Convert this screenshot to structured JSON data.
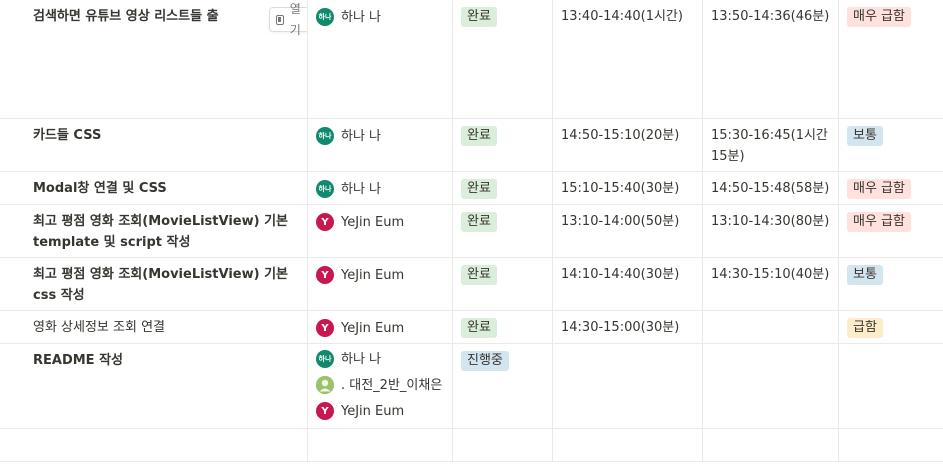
{
  "status_colors": {
    "done_bg": "#dbeddb",
    "progress_bg": "#d3e5ef"
  },
  "priority_colors": {
    "very_urgent_bg": "#ffe2dd",
    "normal_bg": "#d3e5ef",
    "urgent_bg": "#fdecc8"
  },
  "open_button": {
    "label": "열기"
  },
  "rows": [
    {
      "title": "검색하면 유튜브 영상 리스트들 출",
      "people": [
        {
          "initials": "하나",
          "name": "하나 나",
          "avatar": "hana"
        }
      ],
      "status": "완료",
      "plan": "13:40-14:40(1시간)",
      "actual": "13:50-14:36(46분)",
      "priority": "매우 급함"
    },
    {
      "title": "카드들 CSS",
      "people": [
        {
          "initials": "하나",
          "name": "하나 나",
          "avatar": "hana"
        }
      ],
      "status": "완료",
      "plan": "14:50-15:10(20분)",
      "actual": "15:30-16:45(1시간 15분)",
      "priority": "보통"
    },
    {
      "title": "Modal창 연결 및 CSS",
      "people": [
        {
          "initials": "하나",
          "name": "하나 나",
          "avatar": "hana"
        }
      ],
      "status": "완료",
      "plan": "15:10-15:40(30분)",
      "actual": "14:50-15:48(58분)",
      "priority": "매우 급함"
    },
    {
      "title": "최고 평점 영화 조회(MovieListView) 기본 template 및 script 작성",
      "people": [
        {
          "initials": "Y",
          "name": "YeJin Eum",
          "avatar": "yejin"
        }
      ],
      "status": "완료",
      "plan": "13:10-14:00(50분)",
      "actual": "13:10-14:30(80분)",
      "priority": "매우 급함"
    },
    {
      "title": "최고 평점 영화 조회(MovieListView) 기본 css 작성",
      "people": [
        {
          "initials": "Y",
          "name": "YeJin Eum",
          "avatar": "yejin"
        }
      ],
      "status": "완료",
      "plan": "14:10-14:40(30분)",
      "actual": "14:30-15:10(40분)",
      "priority": "보통"
    },
    {
      "title": "영화 상세정보 조회 연결",
      "people": [
        {
          "initials": "Y",
          "name": "YeJin Eum",
          "avatar": "yejin"
        }
      ],
      "status": "완료",
      "plan": "14:30-15:00(30분)",
      "actual": "",
      "priority": "급함"
    },
    {
      "title": "README 작성",
      "people": [
        {
          "initials": "하나",
          "name": "하나 나",
          "avatar": "hana"
        },
        {
          "initials": "",
          "name": ". 대전_2반_이채은",
          "avatar": "user"
        },
        {
          "initials": "Y",
          "name": "YeJin Eum",
          "avatar": "yejin"
        }
      ],
      "status": "진행중",
      "plan": "",
      "actual": "",
      "priority": ""
    }
  ]
}
